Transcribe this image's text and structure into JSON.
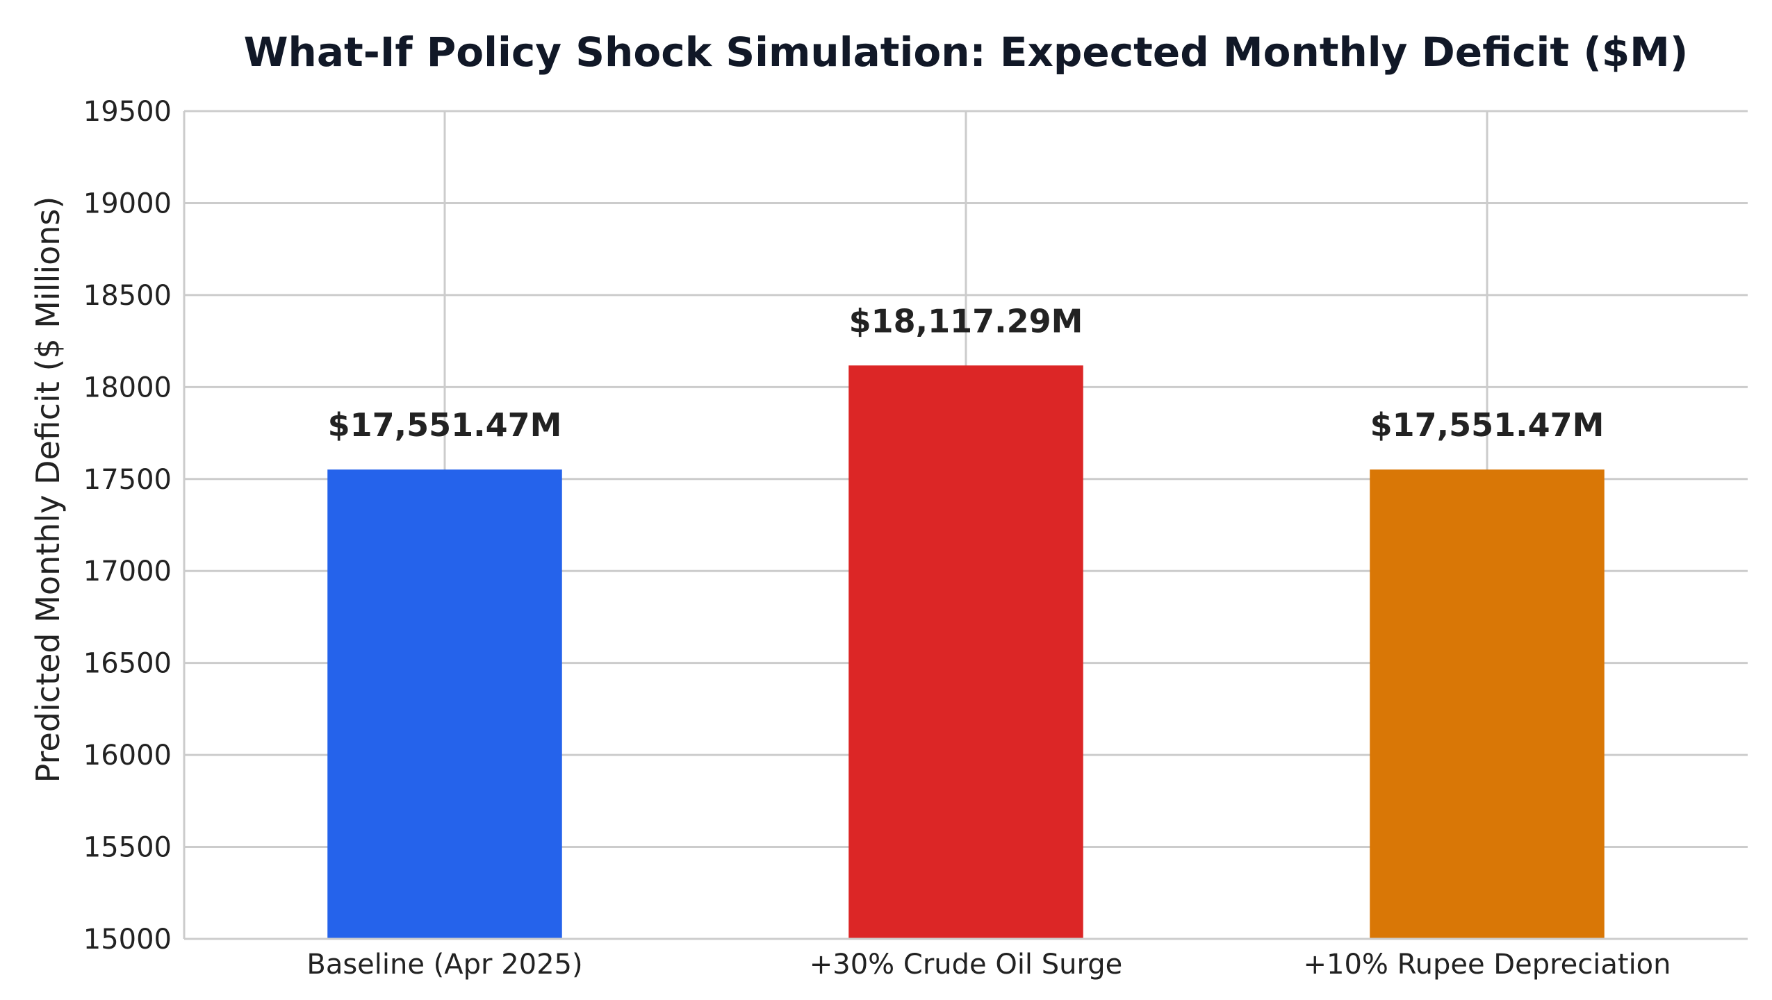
{
  "chart_data": {
    "type": "bar",
    "title": "What-If Policy Shock Simulation: Expected Monthly Deficit ($M)",
    "xlabel": "",
    "ylabel": "Predicted Monthly Deficit ($ Millions)",
    "ylim": [
      15000,
      19500
    ],
    "yticks": [
      15000,
      15500,
      16000,
      16500,
      17000,
      17500,
      18000,
      18500,
      19000,
      19500
    ],
    "grid": true,
    "categories": [
      "Baseline (Apr 2025)",
      "+30% Crude Oil Surge",
      "+10% Rupee Depreciation"
    ],
    "values": [
      17551.47,
      18117.29,
      17551.47
    ],
    "data_labels": [
      "$17,551.47M",
      "$18,117.29M",
      "$17,551.47M"
    ],
    "colors": [
      "#2563eb",
      "#dc2626",
      "#d97706"
    ]
  }
}
